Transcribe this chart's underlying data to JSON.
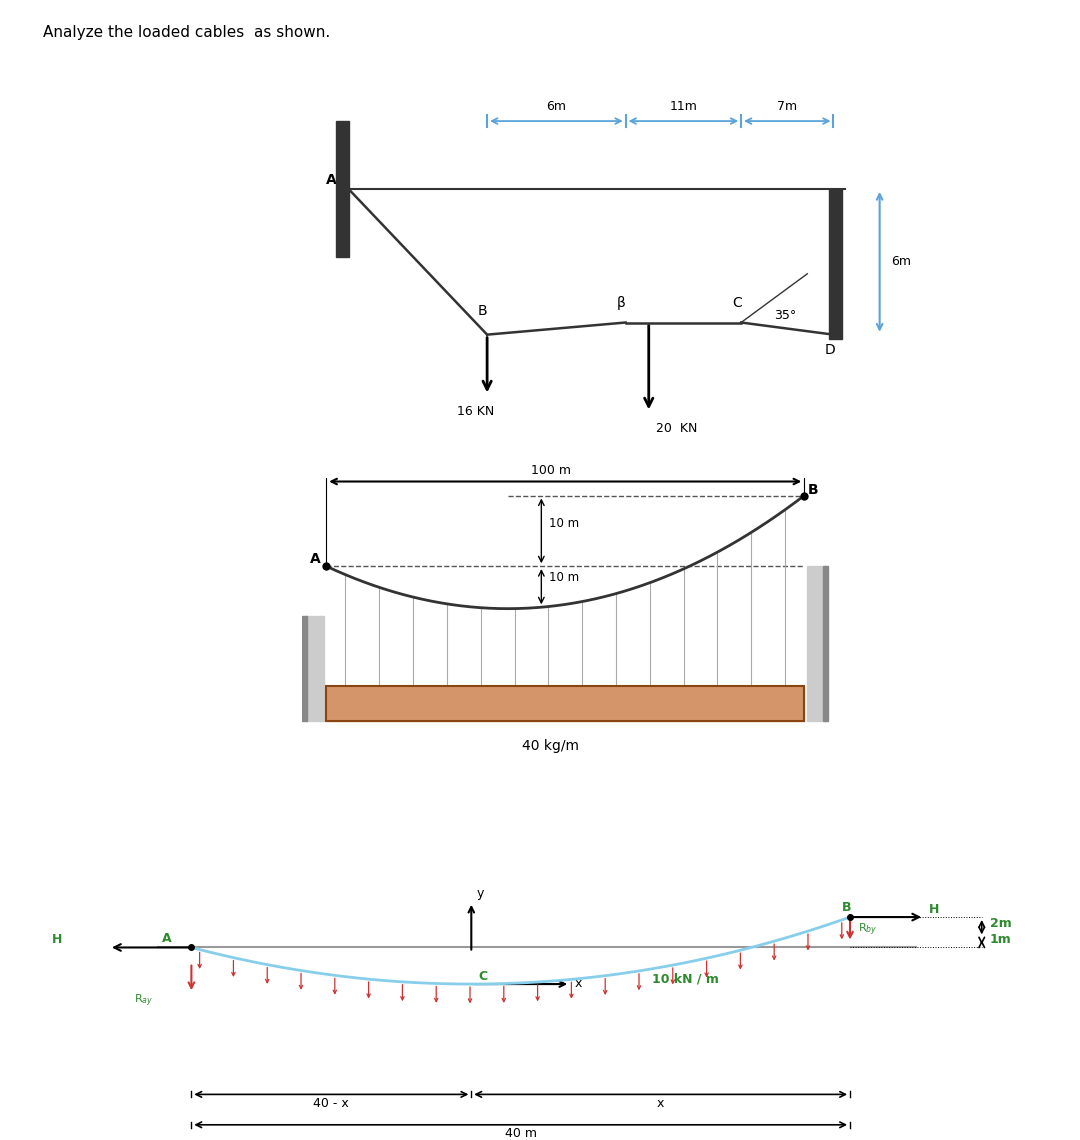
{
  "title": "Analyze the loaded cables  as shown.",
  "bg": "#ffffff",
  "colors": {
    "dim_arrow": "#5ba3d9",
    "cable": "#333333",
    "black": "#000000",
    "green_label": "#2d8a2d",
    "red_arrow": "#cc3333",
    "beam_fill": "#d4956a",
    "cable3": "#87ceeb",
    "support_dark": "#333333",
    "support_gray": "#888888",
    "hanger": "#aaaaaa",
    "dashed": "#555555"
  },
  "d1": {
    "ax_span_labels": [
      "6m",
      "11m",
      "7m"
    ],
    "label_6m_right": "6m",
    "label_16kn": "16 KN",
    "label_20kn": "20  KN",
    "angle_label": "35°",
    "pts": {
      "A": "A",
      "B": "B",
      "beta": "β",
      "C": "C",
      "D": "D"
    }
  },
  "d2": {
    "label_100m": "100 m",
    "label_10m_1": "10 m",
    "label_10m_2": "10 m",
    "label_load": "40 kg/m",
    "pts": {
      "A": "A",
      "B": "B"
    }
  },
  "d3": {
    "label_load": "10 kN / m",
    "label_2m": "2m",
    "label_1m": "1m",
    "label_40mx": "40 - x",
    "label_x": "x",
    "label_40m": "40 m",
    "pts": {
      "A": "A",
      "B": "B",
      "C": "C",
      "H_left": "H",
      "H_right": "H"
    },
    "reaction_A": "R$_{ay}$",
    "reaction_B": "R$_{by}$"
  }
}
